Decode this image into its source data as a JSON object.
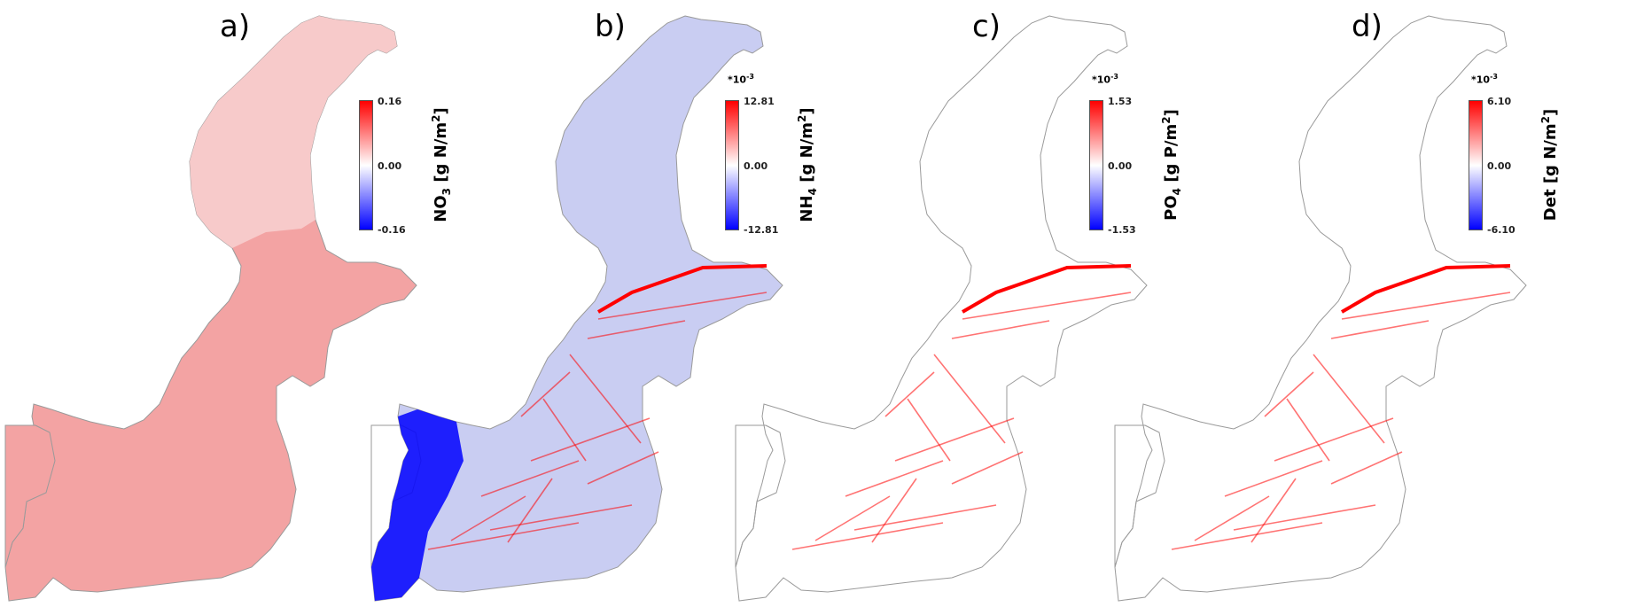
{
  "panels": [
    {
      "letter": "a)",
      "scale_prefix": "",
      "scale_exp": "",
      "var_main": "NO",
      "var_sub": "3",
      "unit_pre": " [g N/m",
      "unit_sup": "2",
      "unit_post": "]",
      "tick_max": "0.16",
      "tick_mid": "0.00",
      "tick_min": "-0.16",
      "sea_fill": "#f3a3a3",
      "north_fill": "#f7caca"
    },
    {
      "letter": "b)",
      "scale_prefix": "*10",
      "scale_exp": "-3",
      "var_main": "NH",
      "var_sub": "4",
      "unit_pre": " [g N/m",
      "unit_sup": "2",
      "unit_post": "]",
      "tick_max": "12.81",
      "tick_mid": "0.00",
      "tick_min": "-12.81",
      "sea_fill": "#c9cdf2",
      "north_fill": "#ffffff"
    },
    {
      "letter": "c)",
      "scale_prefix": "*10",
      "scale_exp": "-3",
      "var_main": "PO",
      "var_sub": "4",
      "unit_pre": " [g P/m",
      "unit_sup": "2",
      "unit_post": "]",
      "tick_max": "1.53",
      "tick_mid": "0.00",
      "tick_min": "-1.53",
      "sea_fill": "#ffffff",
      "north_fill": "#ffffff"
    },
    {
      "letter": "d)",
      "scale_prefix": "*10",
      "scale_exp": "-3",
      "var_main": "Det",
      "var_sub": "",
      "unit_pre": " [g N/m",
      "unit_sup": "2",
      "unit_post": "]",
      "tick_max": "6.10",
      "tick_mid": "0.00",
      "tick_min": "-6.10",
      "sea_fill": "#ffffff",
      "north_fill": "#ffffff"
    }
  ],
  "colors": {
    "positive": "#ff0000",
    "neutral": "#ffffff",
    "negative": "#0000ff",
    "coast": "#9a9a9a"
  }
}
